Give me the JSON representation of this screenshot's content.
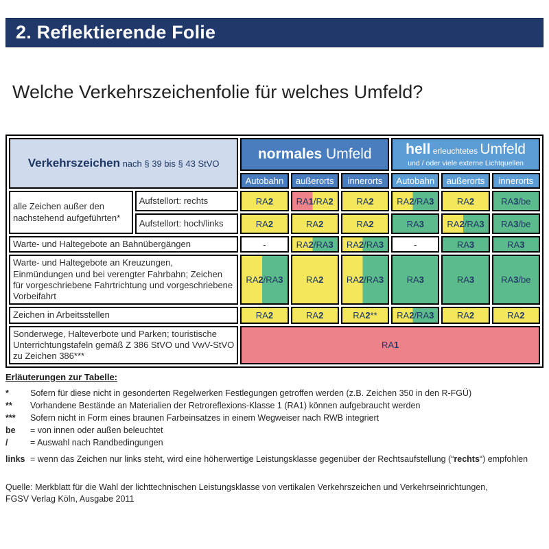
{
  "page": {
    "header_title": "2. Reflektierende Folie",
    "headline": "Welche Verkehrszeichenfolie für welches Umfeld?"
  },
  "colors": {
    "navy_bar": "#21386b",
    "corner_bg": "#cfdbed",
    "normal_umfeld_blue": "#4a7dbd",
    "hell_umfeld_blue": "#5d9dd6",
    "class_yellow": "#f5e75b",
    "class_green": "#5cbb8c",
    "class_red": "#ee828a",
    "ra_text": "#1f3864"
  },
  "table": {
    "corner": {
      "title": "Verkehrszeichen",
      "suffix": " nach § 39 bis § 43 StVO"
    },
    "group_normal": {
      "bold": "normales",
      "rest": " Umfeld"
    },
    "group_hell": {
      "bold": "hell",
      "mid": " erleuchtetes ",
      "rest": "Umfeld",
      "subtitle": "und / oder viele externe Lichtquellen"
    },
    "columns": [
      "Autobahn",
      "außerorts",
      "innerorts",
      "Autobahn",
      "außerorts",
      "innerorts"
    ],
    "rows": [
      {
        "label": "alle Zeichen außer den nachstehend aufgeführten*",
        "sublabel": "Aufstellort: rechts",
        "cells": [
          {
            "text": "RA2",
            "color": "yellow"
          },
          {
            "text": "RA1/RA2",
            "color": "red-yellow"
          },
          {
            "text": "RA2",
            "color": "yellow"
          },
          {
            "text": "RA2/RA3",
            "color": "yellow-green"
          },
          {
            "text": "RA2",
            "color": "yellow"
          },
          {
            "text": "RA3/be",
            "color": "green"
          }
        ]
      },
      {
        "sublabel": "Aufstellort: hoch/links",
        "cells": [
          {
            "text": "RA2",
            "color": "yellow"
          },
          {
            "text": "RA2",
            "color": "yellow"
          },
          {
            "text": "RA2",
            "color": "yellow"
          },
          {
            "text": "RA3",
            "color": "green"
          },
          {
            "text": "RA2/RA3",
            "color": "yellow-green"
          },
          {
            "text": "RA3/be",
            "color": "green"
          }
        ]
      },
      {
        "label": "Warte- und Haltegebote an Bahnübergängen",
        "cells": [
          {
            "text": "-",
            "color": "white"
          },
          {
            "text": "RA2/RA3",
            "color": "yellow-green"
          },
          {
            "text": "RA2/RA3",
            "color": "yellow-green"
          },
          {
            "text": "-",
            "color": "white"
          },
          {
            "text": "RA3",
            "color": "green"
          },
          {
            "text": "RA3",
            "color": "green"
          }
        ]
      },
      {
        "label": "Warte- und Haltegebote an Kreuzungen, Einmündungen und bei verengter Fahrbahn; Zeichen für vorgeschriebene Fahrtrichtung und vorgeschriebene Vorbeifahrt",
        "cells": [
          {
            "text": "RA2/RA3",
            "color": "yellow-green"
          },
          {
            "text": "RA2",
            "color": "yellow"
          },
          {
            "text": "RA2/RA3",
            "color": "yellow-green"
          },
          {
            "text": "RA3",
            "color": "green"
          },
          {
            "text": "RA3",
            "color": "green"
          },
          {
            "text": "RA3/be",
            "color": "green"
          }
        ]
      },
      {
        "label": "Zeichen in Arbeitsstellen",
        "cells": [
          {
            "text": "RA2",
            "color": "yellow"
          },
          {
            "text": "RA2",
            "color": "yellow"
          },
          {
            "text": "RA2**",
            "color": "yellow"
          },
          {
            "text": "RA2/RA3",
            "color": "yellow-green"
          },
          {
            "text": "RA2",
            "color": "yellow"
          },
          {
            "text": "RA2",
            "color": "yellow"
          }
        ]
      },
      {
        "label": "Sonderwege, Halteverbote und Parken; touristische Unterrichtungstafeln gemäß Z 386 StVO und VwV-StVO zu Zeichen 386***",
        "span_cell": {
          "text": "RA1",
          "color": "red"
        }
      }
    ]
  },
  "notes": {
    "title": "Erläuterungen zur Tabelle:",
    "items": [
      {
        "marker": "*",
        "text": "Sofern für diese nicht in gesonderten Regelwerken Festlegungen getroffen werden (z.B. Zeichen 350 in den R-FGÜ)"
      },
      {
        "marker": "**",
        "text": "Vorhandene Bestände an Materialien der Retroreflexions-Klasse 1 (RA1) können aufgebraucht werden"
      },
      {
        "marker": "***",
        "text": "Sofern nicht in Form eines braunen Farbeinsatzes in einem Wegweiser nach RWB integriert"
      },
      {
        "marker": "be",
        "text": "= von innen oder außen beleuchtet"
      },
      {
        "marker": "/",
        "text": "= Auswahl nach Randbedingungen"
      }
    ],
    "links_note": {
      "marker": "links",
      "pre": "= wenn das Zeichen nur links steht, wird eine höherwertige Leistungsklasse gegenüber der Rechtsaufstellung (“",
      "bold": "rechts",
      "post": "“) empfohlen"
    }
  },
  "source": {
    "line1": "Quelle: Merkblatt für die Wahl der lichttechnischen Leistungsklasse von vertikalen Verkehrszeichen und Verkehrseinrichtungen,",
    "line2": "FGSV Verlag Köln, Ausgabe 2011"
  }
}
